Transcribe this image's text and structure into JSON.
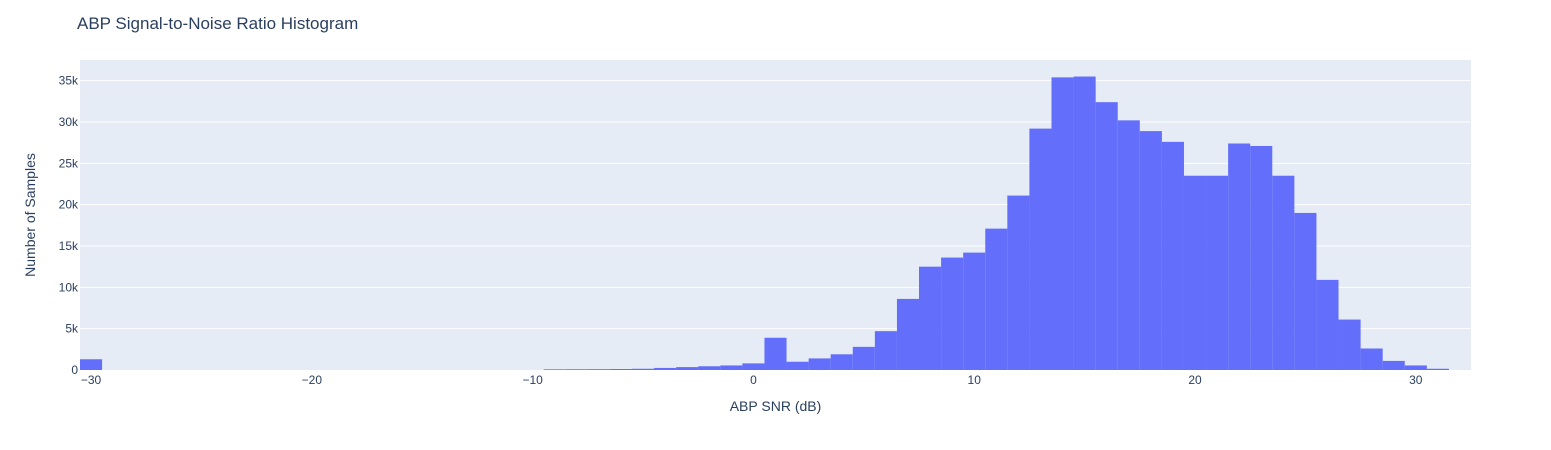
{
  "chart_data": {
    "type": "bar",
    "title": "ABP Signal-to-Noise Ratio Histogram",
    "xlabel": "ABP SNR (dB)",
    "ylabel": "Number of Samples",
    "xlim": [
      -30.5,
      32.5
    ],
    "ylim": [
      0,
      37500
    ],
    "x_ticks": [
      -30,
      -20,
      -10,
      0,
      10,
      20,
      30
    ],
    "x_tick_labels": [
      "−30",
      "−20",
      "−10",
      "0",
      "10",
      "20",
      "30"
    ],
    "y_ticks": [
      0,
      5000,
      10000,
      15000,
      20000,
      25000,
      30000,
      35000
    ],
    "y_tick_labels": [
      "0",
      "5k",
      "10k",
      "15k",
      "20k",
      "25k",
      "30k",
      "35k"
    ],
    "bin_width": 1,
    "bins": [
      {
        "x0": -30.5,
        "count": 1300
      },
      {
        "x0": -9.5,
        "count": 80
      },
      {
        "x0": -8.5,
        "count": 90
      },
      {
        "x0": -7.5,
        "count": 100
      },
      {
        "x0": -6.5,
        "count": 120
      },
      {
        "x0": -5.5,
        "count": 150
      },
      {
        "x0": -4.5,
        "count": 250
      },
      {
        "x0": -3.5,
        "count": 350
      },
      {
        "x0": -2.5,
        "count": 450
      },
      {
        "x0": -1.5,
        "count": 550
      },
      {
        "x0": -0.5,
        "count": 800
      },
      {
        "x0": 0.5,
        "count": 3900
      },
      {
        "x0": 1.5,
        "count": 1000
      },
      {
        "x0": 2.5,
        "count": 1400
      },
      {
        "x0": 3.5,
        "count": 1900
      },
      {
        "x0": 4.5,
        "count": 2800
      },
      {
        "x0": 5.5,
        "count": 4700
      },
      {
        "x0": 6.5,
        "count": 8600
      },
      {
        "x0": 7.5,
        "count": 12500
      },
      {
        "x0": 8.5,
        "count": 13600
      },
      {
        "x0": 9.5,
        "count": 14200
      },
      {
        "x0": 10.5,
        "count": 17100
      },
      {
        "x0": 11.5,
        "count": 21100
      },
      {
        "x0": 12.5,
        "count": 29200
      },
      {
        "x0": 13.5,
        "count": 35400
      },
      {
        "x0": 14.5,
        "count": 35500
      },
      {
        "x0": 15.5,
        "count": 32400
      },
      {
        "x0": 16.5,
        "count": 30200
      },
      {
        "x0": 17.5,
        "count": 28900
      },
      {
        "x0": 18.5,
        "count": 27600
      },
      {
        "x0": 19.5,
        "count": 23500
      },
      {
        "x0": 20.5,
        "count": 23500
      },
      {
        "x0": 21.5,
        "count": 27400
      },
      {
        "x0": 22.5,
        "count": 27100
      },
      {
        "x0": 23.5,
        "count": 23500
      },
      {
        "x0": 24.5,
        "count": 19000
      },
      {
        "x0": 25.5,
        "count": 10900
      },
      {
        "x0": 26.5,
        "count": 6100
      },
      {
        "x0": 27.5,
        "count": 2600
      },
      {
        "x0": 28.5,
        "count": 1100
      },
      {
        "x0": 29.5,
        "count": 550
      },
      {
        "x0": 30.5,
        "count": 150
      }
    ],
    "bar_color": "#636efa",
    "plot_bgcolor": "#e5ecf6",
    "grid": true,
    "legend": false
  }
}
